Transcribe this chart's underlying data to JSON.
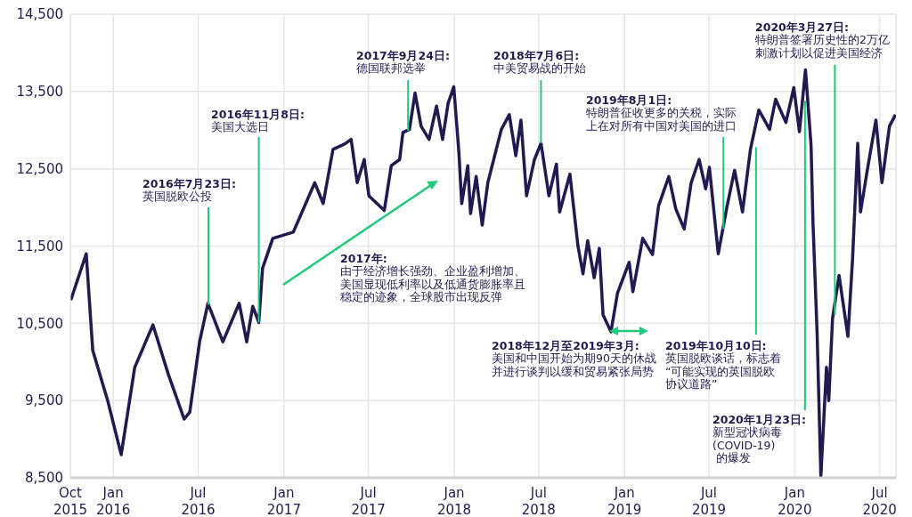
{
  "chart_data": {
    "type": "line",
    "color": "#1f1a4f",
    "grid": true,
    "marker": "none",
    "line_style": "solid",
    "xlim": [
      "2015-10-01",
      "2020-08-05"
    ],
    "xticks": [
      {
        "value": "2015-10-01",
        "label": "Oct 2015"
      },
      {
        "value": "2016-01-01",
        "label": "Jan 2016"
      },
      {
        "value": "2016-07-01",
        "label": "Jul 2016"
      },
      {
        "value": "2017-01-01",
        "label": "Jan 2017"
      },
      {
        "value": "2017-07-01",
        "label": "Jul 2017"
      },
      {
        "value": "2018-01-01",
        "label": "Jan 2018"
      },
      {
        "value": "2018-07-01",
        "label": "Jul 2018"
      },
      {
        "value": "2019-01-01",
        "label": "Jan 2019"
      },
      {
        "value": "2019-07-01",
        "label": "Jul 2019"
      },
      {
        "value": "2020-01-01",
        "label": "Jan 2020"
      },
      {
        "value": "2020-07-01",
        "label": "Jul 2020"
      }
    ],
    "ylim": [
      8500,
      14500
    ],
    "yticks": [
      {
        "value": 8500,
        "label": "8,500"
      },
      {
        "value": 9500,
        "label": "9,500"
      },
      {
        "value": 10500,
        "label": "10,500"
      },
      {
        "value": 11500,
        "label": "11,500"
      },
      {
        "value": 12500,
        "label": "12,500"
      },
      {
        "value": 13500,
        "label": "13,500"
      },
      {
        "value": 14500,
        "label": "14,500"
      }
    ],
    "x": [
      "2015-10-02",
      "2015-11-04",
      "2015-11-18",
      "2015-12-20",
      "2016-01-18",
      "2016-02-16",
      "2016-03-26",
      "2016-04-28",
      "2016-06-01",
      "2016-06-13",
      "2016-07-04",
      "2016-07-22",
      "2016-08-23",
      "2016-09-27",
      "2016-10-13",
      "2016-10-26",
      "2016-11-08",
      "2016-11-16",
      "2016-12-08",
      "2017-01-21",
      "2017-03-08",
      "2017-03-26",
      "2017-04-16",
      "2017-05-11",
      "2017-05-25",
      "2017-06-07",
      "2017-06-22",
      "2017-07-02",
      "2017-08-04",
      "2017-08-19",
      "2017-09-06",
      "2017-09-13",
      "2017-09-27",
      "2017-10-09",
      "2017-10-22",
      "2017-11-08",
      "2017-11-24",
      "2017-12-07",
      "2017-12-19",
      "2017-12-31",
      "2018-01-11",
      "2018-01-17",
      "2018-01-30",
      "2018-02-05",
      "2018-02-17",
      "2018-03-02",
      "2018-03-14",
      "2018-04-12",
      "2018-04-29",
      "2018-05-13",
      "2018-05-24",
      "2018-06-05",
      "2018-06-22",
      "2018-07-06",
      "2018-07-23",
      "2018-08-08",
      "2018-08-15",
      "2018-09-06",
      "2018-09-23",
      "2018-10-04",
      "2018-10-14",
      "2018-10-28",
      "2018-11-08",
      "2018-11-16",
      "2018-12-03",
      "2018-12-17",
      "2019-01-11",
      "2019-01-19",
      "2019-02-09",
      "2019-03-02",
      "2019-03-15",
      "2019-04-06",
      "2019-04-21",
      "2019-05-09",
      "2019-05-24",
      "2019-06-10",
      "2019-06-24",
      "2019-07-02",
      "2019-07-21",
      "2019-08-09",
      "2019-08-25",
      "2019-09-11",
      "2019-09-28",
      "2019-10-16",
      "2019-11-08",
      "2019-11-21",
      "2019-12-13",
      "2019-12-30",
      "2020-01-11",
      "2020-01-24",
      "2020-02-05",
      "2020-02-09",
      "2020-02-18",
      "2020-02-26",
      "2020-03-09",
      "2020-03-14",
      "2020-03-22",
      "2020-04-05",
      "2020-04-24",
      "2020-05-04",
      "2020-05-15",
      "2020-05-21",
      "2020-06-05",
      "2020-06-23",
      "2020-07-06",
      "2020-07-22",
      "2020-08-04"
    ],
    "values": [
      10800,
      11400,
      10150,
      9500,
      8800,
      9930,
      10480,
      9840,
      9260,
      9350,
      10260,
      10760,
      10260,
      10760,
      10260,
      10720,
      10510,
      11210,
      11600,
      11680,
      12320,
      12050,
      12750,
      12820,
      12880,
      12320,
      12620,
      12150,
      11960,
      12540,
      12620,
      12970,
      13010,
      13480,
      13050,
      12880,
      13310,
      12880,
      13350,
      13560,
      12710,
      12050,
      12540,
      11920,
      12400,
      11770,
      12320,
      13010,
      13200,
      12670,
      13130,
      12150,
      12620,
      12830,
      12150,
      12560,
      11940,
      12430,
      11510,
      11140,
      11570,
      11090,
      11470,
      10610,
      10390,
      10890,
      11290,
      10910,
      11600,
      11390,
      12020,
      12400,
      11980,
      11720,
      12320,
      12620,
      12240,
      12520,
      11400,
      12020,
      12480,
      11940,
      12750,
      13260,
      13010,
      13400,
      13100,
      13550,
      12980,
      13780,
      12800,
      11820,
      10360,
      8520,
      9930,
      9500,
      10560,
      11120,
      10330,
      11340,
      12830,
      11940,
      12500,
      13130,
      12320,
      13050,
      13200
    ],
    "annotations": [
      {
        "text": "2016年7月23日:\n英国脱欧公投",
        "x": "2016-07-23",
        "y": 10740
      },
      {
        "text": "2016年11月8日:\n美国大选日",
        "x": "2016-11-08",
        "y": 10510
      },
      {
        "text": "2017年9月24日:\n德国联邦选举",
        "x": "2017-09-24",
        "y": 12990
      },
      {
        "text": "2018年7月6日:\n中美贸易战的开始",
        "x": "2018-07-06",
        "y": 12830
      },
      {
        "text": "2019年8月1日:\n特朗普征收更多的关税，实际上在对所有中国对美国的进口",
        "x": "2019-08-01",
        "y": 11720
      },
      {
        "text": "2019年10月10日:\n英国脱欧谈话，标志着“可能实现的英国脱欧协议道路”",
        "x": "2019-10-10",
        "y": 12780
      },
      {
        "text": "2020年1月23日:\n新型冠状病毒(COVID-19) 的爆发",
        "x": "2020-01-23",
        "y": 13380
      },
      {
        "text": "2020年3月27日:\n特朗普签署历史性的2万亿刺激计划以促进美国经济",
        "x": "2020-03-27",
        "y": 10610
      },
      "2017年:\n由于经济增长强劲、企业盈利增加、美国显现低利率以及低通货膨胀率且稳定的迹象，全球股市出现反弹",
      "2018年12月至2019年3月:\n美国和中国开始为期90天的休战并进行谈判以缓和贸易紧张局势"
    ]
  }
}
